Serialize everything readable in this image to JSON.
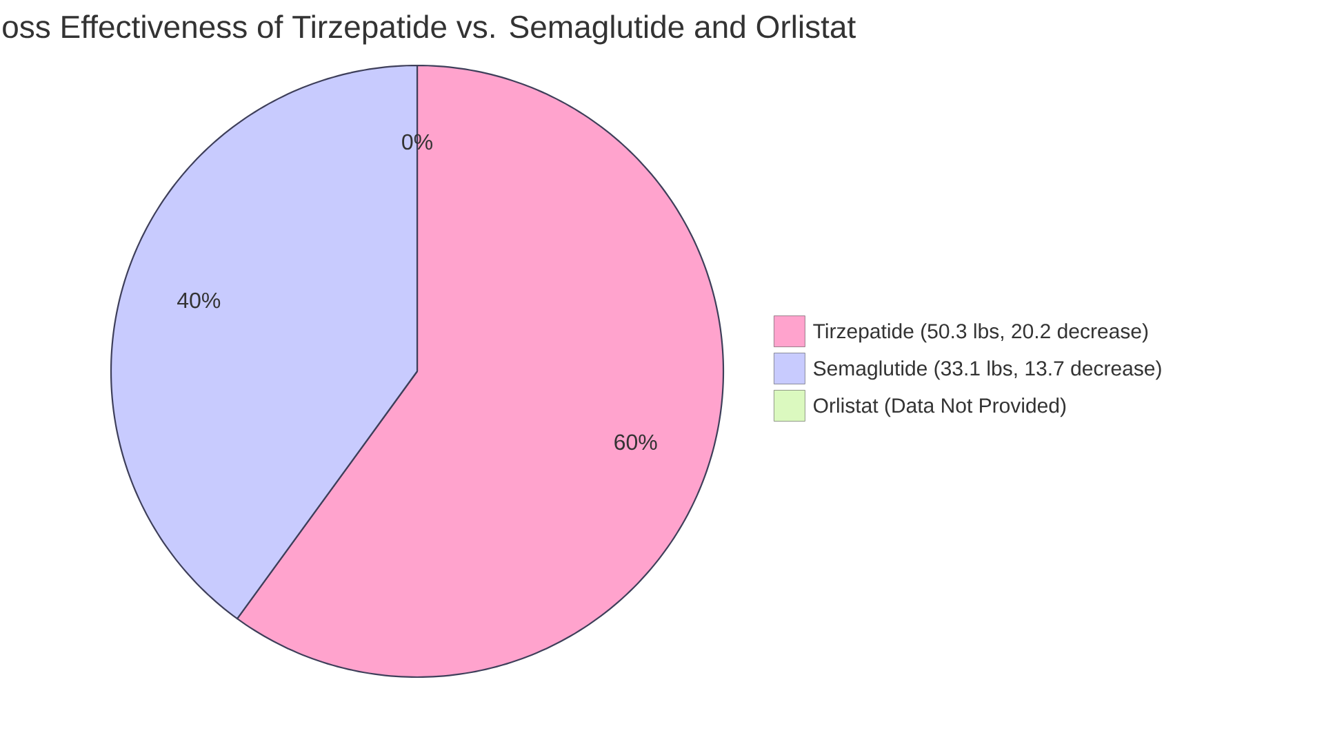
{
  "chart_data": {
    "type": "pie",
    "title": "oss Effectiveness of Tirzepatide vs. Semaglutide and Orlistat",
    "categories": [
      "Tirzepatide (50.3 lbs, 20.2 decrease)",
      "Semaglutide (33.1 lbs, 13.7 decrease)",
      "Orlistat (Data Not Provided)"
    ],
    "values": [
      60,
      40,
      0
    ],
    "colors": [
      "#ffa3cd",
      "#c8cbfe",
      "#dbf9bf"
    ],
    "value_labels": [
      "60%",
      "40%",
      "0%"
    ],
    "legend": "right"
  }
}
